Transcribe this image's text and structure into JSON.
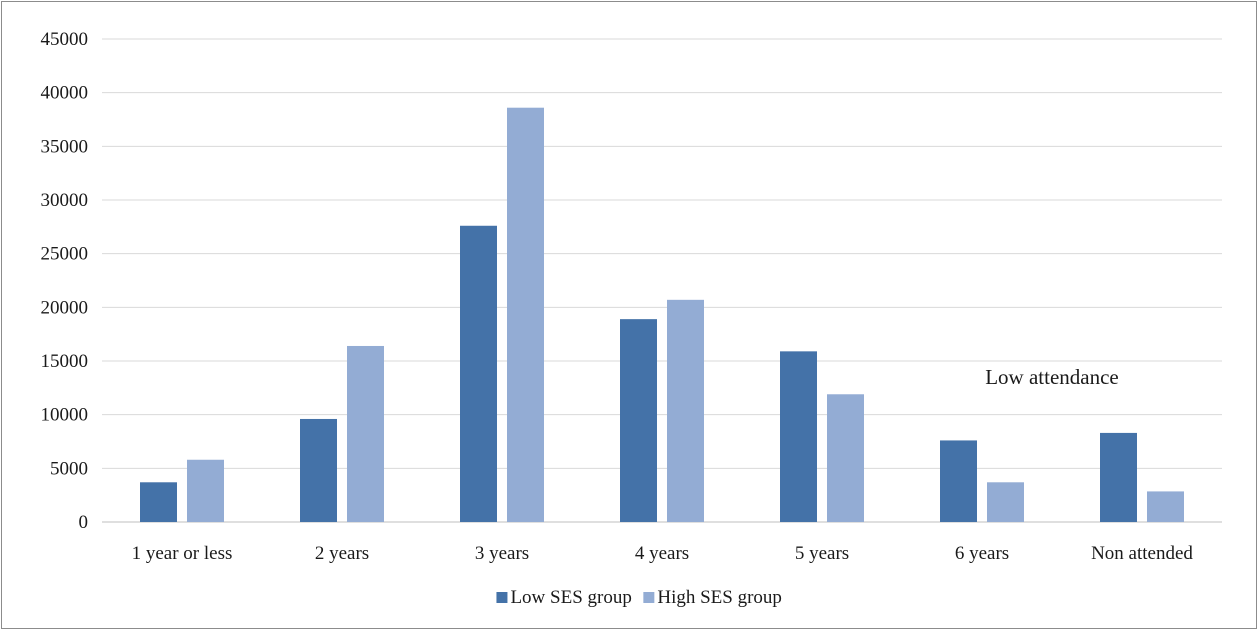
{
  "chart_data": {
    "type": "bar",
    "title": "",
    "xlabel": "",
    "ylabel": "",
    "categories": [
      "1 year or less",
      "2 years",
      "3 years",
      "4 years",
      "5 years",
      "6 years",
      "Non attended"
    ],
    "series": [
      {
        "name": "Low SES group",
        "color": "#4472a8",
        "values": [
          3700,
          9600,
          27600,
          18900,
          15900,
          7600,
          8300
        ]
      },
      {
        "name": "High SES group",
        "color": "#93acd4",
        "values": [
          5800,
          16400,
          38600,
          20700,
          11900,
          3700,
          2850
        ]
      }
    ],
    "ylim": [
      0,
      45000
    ],
    "yticks": [
      0,
      5000,
      10000,
      15000,
      20000,
      25000,
      30000,
      35000,
      40000,
      45000
    ],
    "grid": true,
    "legend_position": "bottom",
    "annotations": [
      {
        "text": "Low attendance",
        "anchor_category": "6 years"
      }
    ]
  }
}
